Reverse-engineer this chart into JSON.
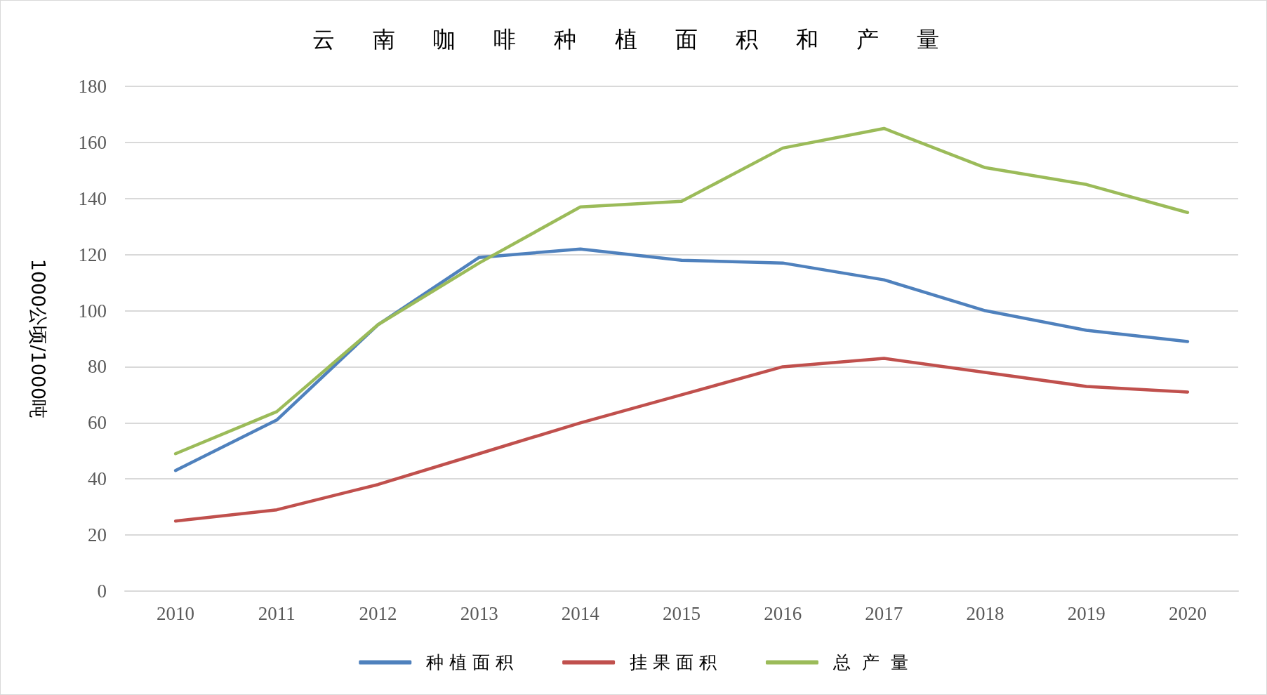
{
  "chart_data": {
    "type": "line",
    "title": "云 南 咖 啡 种 植 面 积 和 产 量",
    "ylabel": "1000公顷/1000吨",
    "categories": [
      "2010",
      "2011",
      "2012",
      "2013",
      "2014",
      "2015",
      "2016",
      "2017",
      "2018",
      "2019",
      "2020"
    ],
    "series": [
      {
        "name": "种 植 面 积",
        "color": "#4f81bd",
        "values": [
          43,
          61,
          95,
          119,
          122,
          118,
          117,
          111,
          100,
          93,
          89
        ]
      },
      {
        "name": "挂 果 面 积",
        "color": "#c0504d",
        "values": [
          25,
          29,
          38,
          49,
          60,
          70,
          80,
          83,
          78,
          73,
          71
        ]
      },
      {
        "name": "总  产  量",
        "color": "#9bbb59",
        "values": [
          49,
          64,
          95,
          117,
          137,
          139,
          158,
          165,
          151,
          145,
          135
        ]
      }
    ],
    "ylim": [
      0,
      180
    ],
    "yticks": [
      0,
      20,
      40,
      60,
      80,
      100,
      120,
      140,
      160,
      180
    ],
    "grid": "y",
    "legend": "bottom",
    "marker": "none",
    "line_style": "solid"
  }
}
